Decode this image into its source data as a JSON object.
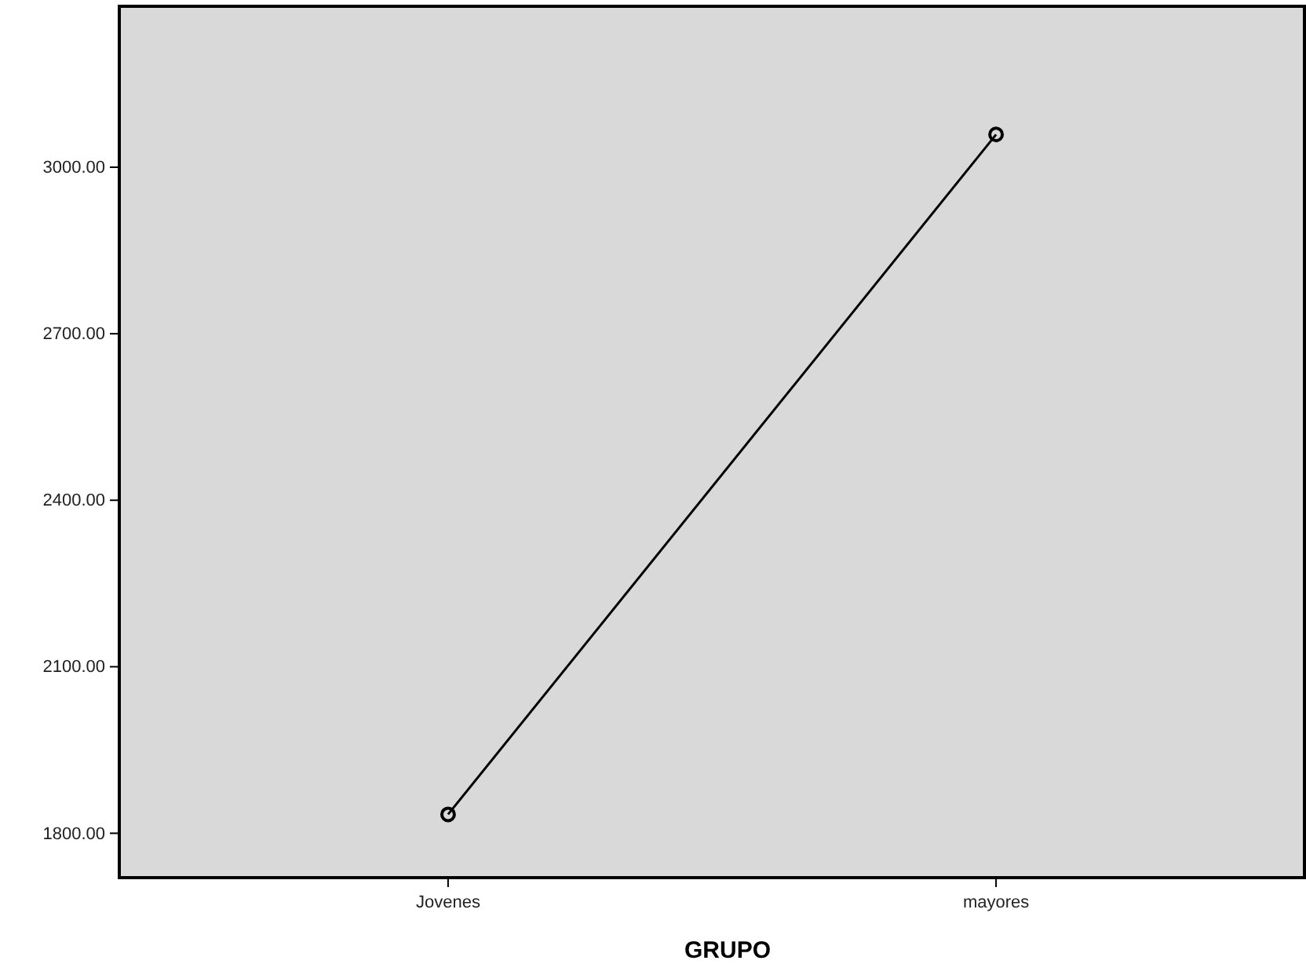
{
  "chart_data": {
    "type": "line",
    "xlabel": "GRUPO",
    "categories": [
      "Jovenes",
      "mayores"
    ],
    "series": [
      {
        "color": "#000000",
        "values": [
          1834,
          3059
        ]
      }
    ],
    "ylim": [
      1720,
      3290
    ],
    "yticks": [
      {
        "value": 1800,
        "label": "1800.00"
      },
      {
        "value": 2100,
        "label": "2100.00"
      },
      {
        "value": 2400,
        "label": "2400.00"
      },
      {
        "value": 2700,
        "label": "2700.00"
      },
      {
        "value": 3000,
        "label": "3000.00"
      }
    ],
    "marker": "circle",
    "line_style": "solid",
    "grid": false
  }
}
